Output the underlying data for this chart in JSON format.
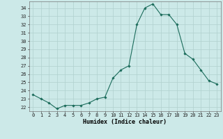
{
  "x": [
    0,
    1,
    2,
    3,
    4,
    5,
    6,
    7,
    8,
    9,
    10,
    11,
    12,
    13,
    14,
    15,
    16,
    17,
    18,
    19,
    20,
    21,
    22,
    23
  ],
  "y": [
    23.5,
    23.0,
    22.5,
    21.8,
    22.2,
    22.2,
    22.2,
    22.5,
    23.0,
    23.2,
    25.5,
    26.5,
    27.0,
    32.0,
    34.0,
    34.5,
    33.2,
    33.2,
    32.0,
    28.5,
    27.8,
    26.5,
    25.2,
    24.8
  ],
  "line_color": "#1a6b5a",
  "marker": "D",
  "marker_size": 1.8,
  "bg_color": "#cce9e8",
  "grid_color": "#b0d0ce",
  "xlabel": "Humidex (Indice chaleur)",
  "xlim": [
    -0.5,
    23.5
  ],
  "ylim": [
    21.5,
    34.8
  ],
  "yticks": [
    22,
    23,
    24,
    25,
    26,
    27,
    28,
    29,
    30,
    31,
    32,
    33,
    34
  ],
  "xtick_labels": [
    "0",
    "1",
    "2",
    "3",
    "4",
    "5",
    "6",
    "7",
    "8",
    "9",
    "10",
    "11",
    "12",
    "13",
    "14",
    "15",
    "16",
    "17",
    "18",
    "19",
    "20",
    "21",
    "22",
    "23"
  ],
  "tick_fontsize": 5.0,
  "xlabel_fontsize": 6.0
}
